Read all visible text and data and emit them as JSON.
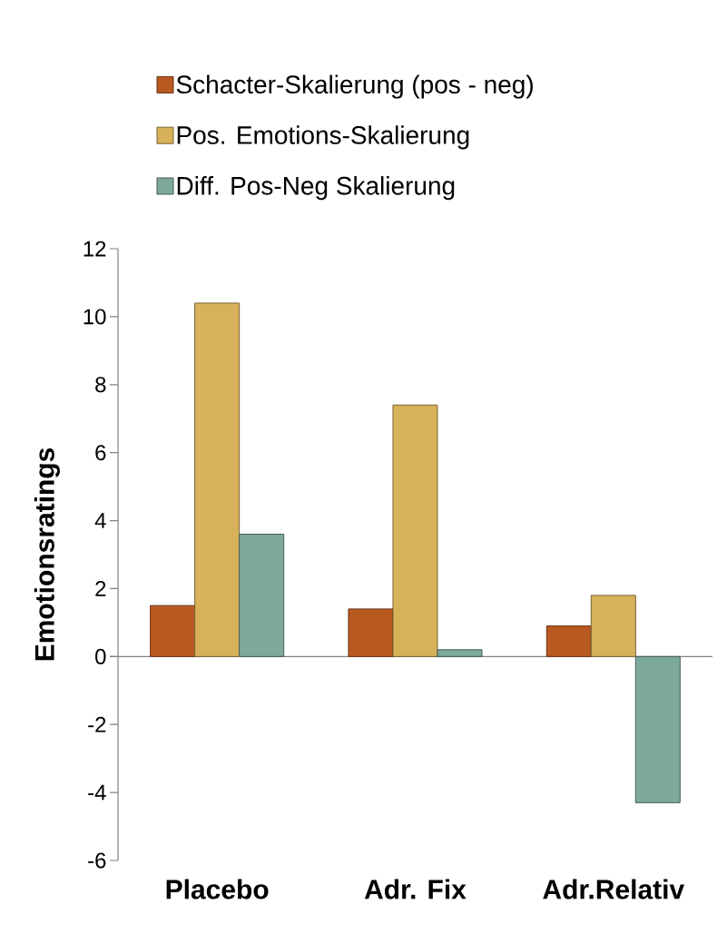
{
  "chart_data": {
    "type": "bar",
    "ylabel": "Emotionsratings",
    "categories": [
      "Placebo",
      "Adr. Fix",
      "Adr.Relativ"
    ],
    "series": [
      {
        "name": "Schacter-Skalierung (pos - neg)",
        "color": "#b95a22",
        "values": [
          1.5,
          1.4,
          0.9
        ]
      },
      {
        "name": "Pos. Emotions-Skalierung",
        "color": "#d8b15b",
        "values": [
          10.4,
          7.4,
          1.8
        ]
      },
      {
        "name": "Diff. Pos-Neg Skalierung",
        "color": "#7da89c",
        "values": [
          3.6,
          0.2,
          -4.3
        ]
      }
    ],
    "ylim": [
      -6,
      12
    ],
    "yticks": [
      -6,
      -4,
      -2,
      0,
      2,
      4,
      6,
      8,
      10,
      12
    ],
    "legend": "top"
  }
}
